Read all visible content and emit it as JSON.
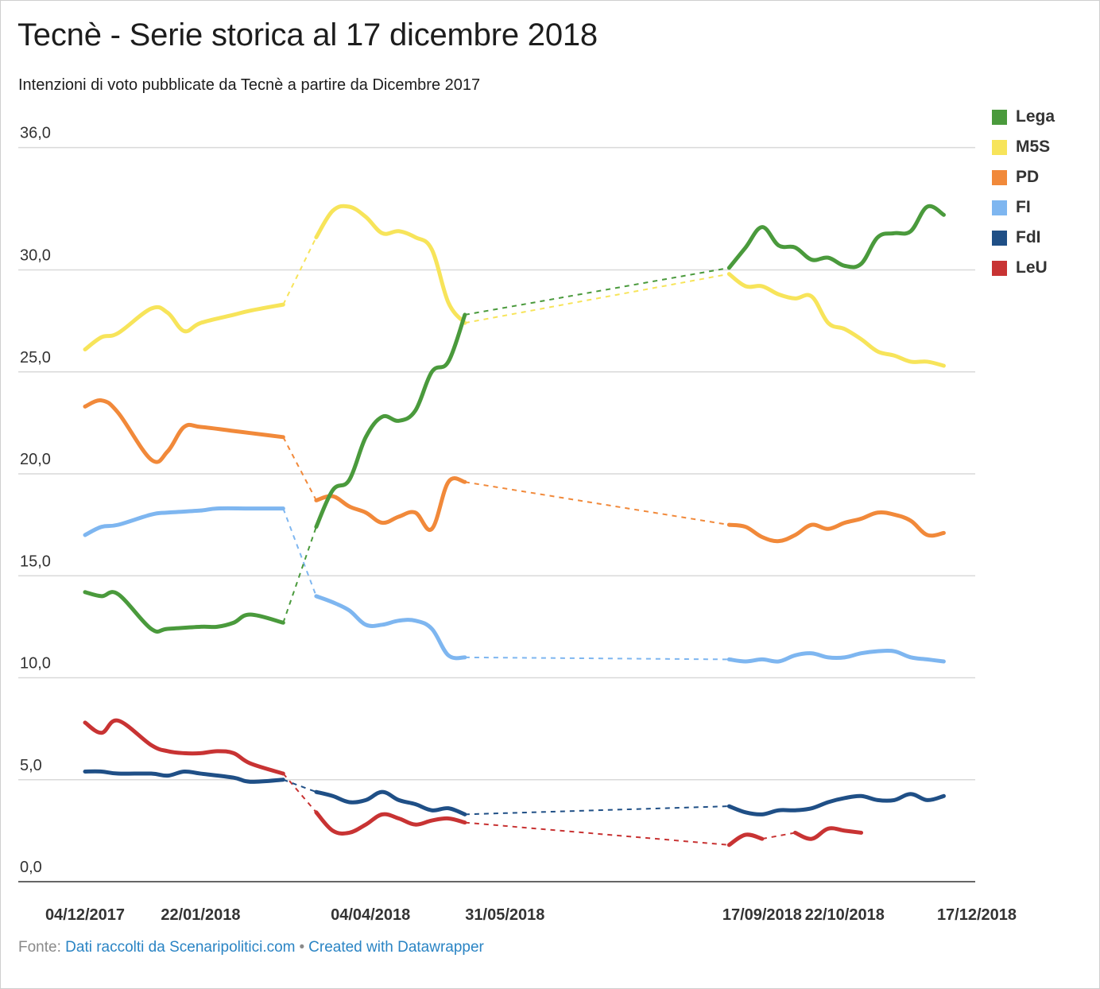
{
  "title": "Tecnè - Serie storica al 17 dicembre 2018",
  "subtitle": "Intenzioni di voto pubblicate da Tecnè a partire da Dicembre 2017",
  "footer": {
    "prefix": "Fonte: ",
    "source_link": "Dati raccolti da Scenaripolitici.com",
    "separator": "•",
    "credit_link": "Created with Datawrapper"
  },
  "chart_data": {
    "type": "line",
    "title": "Tecnè - Serie storica al 17 dicembre 2018",
    "subtitle": "Intenzioni di voto pubblicate da Tecnè a partire da Dicembre 2017",
    "xlabel": "",
    "ylabel": "",
    "ylim": [
      0,
      36
    ],
    "yticks": [
      0,
      5,
      10,
      15,
      20,
      25,
      30,
      36
    ],
    "ytick_labels": [
      "0,0",
      "5,0",
      "10,0",
      "15,0",
      "20,0",
      "25,0",
      "30,0",
      "36,0"
    ],
    "xlim": [
      "2017-12-04",
      "2018-12-17"
    ],
    "xticks": [
      "2017-12-04",
      "2018-01-22",
      "2018-04-04",
      "2018-05-31",
      "2018-09-17",
      "2018-10-22",
      "2018-12-17"
    ],
    "xtick_labels": [
      "04/12/2017",
      "22/01/2018",
      "04/04/2018",
      "31/05/2018",
      "17/09/2018",
      "22/10/2018",
      "17/12/2018"
    ],
    "grid": "horizontal",
    "legend_position": "right",
    "gap_style": "dashed",
    "series": [
      {
        "name": "Lega",
        "color": "#4a9a3c",
        "segments": [
          [
            [
              "2017-12-04",
              14.2
            ],
            [
              "2017-12-11",
              14.0
            ],
            [
              "2017-12-18",
              14.1
            ],
            [
              "2018-01-01",
              12.4
            ],
            [
              "2018-01-08",
              12.4
            ],
            [
              "2018-01-22",
              12.5
            ],
            [
              "2018-01-29",
              12.5
            ],
            [
              "2018-02-05",
              12.7
            ],
            [
              "2018-02-12",
              13.1
            ],
            [
              "2018-02-26",
              12.7
            ]
          ],
          [
            [
              "2018-03-12",
              17.4
            ],
            [
              "2018-03-19",
              19.2
            ],
            [
              "2018-03-26",
              19.7
            ],
            [
              "2018-04-02",
              21.8
            ],
            [
              "2018-04-09",
              22.8
            ],
            [
              "2018-04-16",
              22.6
            ],
            [
              "2018-04-23",
              23.1
            ],
            [
              "2018-04-30",
              25.0
            ],
            [
              "2018-05-07",
              25.5
            ],
            [
              "2018-05-14",
              27.8
            ]
          ],
          [
            [
              "2018-09-03",
              30.1
            ],
            [
              "2018-09-10",
              31.1
            ],
            [
              "2018-09-17",
              32.1
            ],
            [
              "2018-09-24",
              31.2
            ],
            [
              "2018-10-01",
              31.1
            ],
            [
              "2018-10-08",
              30.5
            ],
            [
              "2018-10-15",
              30.6
            ],
            [
              "2018-10-22",
              30.2
            ],
            [
              "2018-10-29",
              30.3
            ],
            [
              "2018-11-05",
              31.6
            ],
            [
              "2018-11-12",
              31.8
            ],
            [
              "2018-11-19",
              31.9
            ],
            [
              "2018-11-26",
              33.1
            ],
            [
              "2018-12-03",
              32.7
            ]
          ]
        ],
        "gaps": [
          [
            "2018-02-26",
            "2018-03-12"
          ],
          [
            "2018-05-14",
            "2018-09-03"
          ]
        ]
      },
      {
        "name": "M5S",
        "color": "#f7e45a",
        "segments": [
          [
            [
              "2017-12-04",
              26.1
            ],
            [
              "2017-12-11",
              26.7
            ],
            [
              "2017-12-18",
              26.9
            ],
            [
              "2018-01-01",
              28.1
            ],
            [
              "2018-01-08",
              27.9
            ],
            [
              "2018-01-15",
              27.0
            ],
            [
              "2018-01-22",
              27.4
            ],
            [
              "2018-02-05",
              27.8
            ],
            [
              "2018-02-12",
              28.0
            ],
            [
              "2018-02-26",
              28.3
            ]
          ],
          [
            [
              "2018-03-12",
              31.6
            ],
            [
              "2018-03-19",
              32.9
            ],
            [
              "2018-03-26",
              33.1
            ],
            [
              "2018-04-02",
              32.6
            ],
            [
              "2018-04-09",
              31.8
            ],
            [
              "2018-04-16",
              31.9
            ],
            [
              "2018-04-23",
              31.6
            ],
            [
              "2018-04-30",
              31.0
            ],
            [
              "2018-05-07",
              28.4
            ],
            [
              "2018-05-14",
              27.4
            ]
          ],
          [
            [
              "2018-09-03",
              29.8
            ],
            [
              "2018-09-10",
              29.2
            ],
            [
              "2018-09-17",
              29.2
            ],
            [
              "2018-09-24",
              28.8
            ],
            [
              "2018-10-01",
              28.6
            ],
            [
              "2018-10-08",
              28.7
            ],
            [
              "2018-10-15",
              27.4
            ],
            [
              "2018-10-22",
              27.1
            ],
            [
              "2018-10-29",
              26.6
            ],
            [
              "2018-11-05",
              26.0
            ],
            [
              "2018-11-12",
              25.8
            ],
            [
              "2018-11-19",
              25.5
            ],
            [
              "2018-11-26",
              25.5
            ],
            [
              "2018-12-03",
              25.3
            ]
          ]
        ],
        "gaps": [
          [
            "2018-02-26",
            "2018-03-12"
          ],
          [
            "2018-05-14",
            "2018-09-03"
          ]
        ]
      },
      {
        "name": "PD",
        "color": "#f1893a",
        "segments": [
          [
            [
              "2017-12-04",
              23.3
            ],
            [
              "2017-12-11",
              23.6
            ],
            [
              "2017-12-18",
              23.0
            ],
            [
              "2018-01-01",
              20.7
            ],
            [
              "2018-01-08",
              21.1
            ],
            [
              "2018-01-15",
              22.3
            ],
            [
              "2018-01-22",
              22.3
            ],
            [
              "2018-02-05",
              22.1
            ],
            [
              "2018-02-12",
              22.0
            ],
            [
              "2018-02-26",
              21.8
            ]
          ],
          [
            [
              "2018-03-12",
              18.7
            ],
            [
              "2018-03-19",
              18.9
            ],
            [
              "2018-03-26",
              18.4
            ],
            [
              "2018-04-02",
              18.1
            ],
            [
              "2018-04-09",
              17.6
            ],
            [
              "2018-04-16",
              17.9
            ],
            [
              "2018-04-23",
              18.1
            ],
            [
              "2018-04-30",
              17.3
            ],
            [
              "2018-05-07",
              19.6
            ],
            [
              "2018-05-14",
              19.6
            ]
          ],
          [
            [
              "2018-09-03",
              17.5
            ],
            [
              "2018-09-10",
              17.4
            ],
            [
              "2018-09-17",
              16.9
            ],
            [
              "2018-09-24",
              16.7
            ],
            [
              "2018-10-01",
              17.0
            ],
            [
              "2018-10-08",
              17.5
            ],
            [
              "2018-10-15",
              17.3
            ],
            [
              "2018-10-22",
              17.6
            ],
            [
              "2018-10-29",
              17.8
            ],
            [
              "2018-11-05",
              18.1
            ],
            [
              "2018-11-12",
              18.0
            ],
            [
              "2018-11-19",
              17.7
            ],
            [
              "2018-11-26",
              17.0
            ],
            [
              "2018-12-03",
              17.1
            ]
          ]
        ],
        "gaps": [
          [
            "2018-02-26",
            "2018-03-12"
          ],
          [
            "2018-05-14",
            "2018-09-03"
          ]
        ]
      },
      {
        "name": "FI",
        "color": "#7eb6f0",
        "segments": [
          [
            [
              "2017-12-04",
              17.0
            ],
            [
              "2017-12-11",
              17.4
            ],
            [
              "2017-12-18",
              17.5
            ],
            [
              "2018-01-01",
              18.0
            ],
            [
              "2018-01-08",
              18.1
            ],
            [
              "2018-01-22",
              18.2
            ],
            [
              "2018-01-29",
              18.3
            ],
            [
              "2018-02-12",
              18.3
            ],
            [
              "2018-02-26",
              18.3
            ]
          ],
          [
            [
              "2018-03-12",
              14.0
            ],
            [
              "2018-03-19",
              13.7
            ],
            [
              "2018-03-26",
              13.3
            ],
            [
              "2018-04-02",
              12.6
            ],
            [
              "2018-04-09",
              12.6
            ],
            [
              "2018-04-16",
              12.8
            ],
            [
              "2018-04-23",
              12.8
            ],
            [
              "2018-04-30",
              12.4
            ],
            [
              "2018-05-07",
              11.1
            ],
            [
              "2018-05-14",
              11.0
            ]
          ],
          [
            [
              "2018-09-03",
              10.9
            ],
            [
              "2018-09-10",
              10.8
            ],
            [
              "2018-09-17",
              10.9
            ],
            [
              "2018-09-24",
              10.8
            ],
            [
              "2018-10-01",
              11.1
            ],
            [
              "2018-10-08",
              11.2
            ],
            [
              "2018-10-15",
              11.0
            ],
            [
              "2018-10-22",
              11.0
            ],
            [
              "2018-10-29",
              11.2
            ],
            [
              "2018-11-05",
              11.3
            ],
            [
              "2018-11-12",
              11.3
            ],
            [
              "2018-11-19",
              11.0
            ],
            [
              "2018-11-26",
              10.9
            ],
            [
              "2018-12-03",
              10.8
            ]
          ]
        ],
        "gaps": [
          [
            "2018-05-14",
            "2018-09-03"
          ]
        ],
        "gap_note": "drop from 18.3 to 14.0 between 2018-02-26 and 2018-03-12 drawn dashed"
      },
      {
        "name": "FdI",
        "color": "#1f4f86",
        "segments": [
          [
            [
              "2017-12-04",
              5.4
            ],
            [
              "2017-12-11",
              5.4
            ],
            [
              "2017-12-18",
              5.3
            ],
            [
              "2018-01-01",
              5.3
            ],
            [
              "2018-01-08",
              5.2
            ],
            [
              "2018-01-15",
              5.4
            ],
            [
              "2018-01-22",
              5.3
            ],
            [
              "2018-02-05",
              5.1
            ],
            [
              "2018-02-12",
              4.9
            ],
            [
              "2018-02-26",
              5.0
            ]
          ],
          [
            [
              "2018-03-12",
              4.4
            ],
            [
              "2018-03-19",
              4.2
            ],
            [
              "2018-03-26",
              3.9
            ],
            [
              "2018-04-02",
              4.0
            ],
            [
              "2018-04-09",
              4.4
            ],
            [
              "2018-04-16",
              4.0
            ],
            [
              "2018-04-23",
              3.8
            ],
            [
              "2018-04-30",
              3.5
            ],
            [
              "2018-05-07",
              3.6
            ],
            [
              "2018-05-14",
              3.3
            ]
          ],
          [
            [
              "2018-09-03",
              3.7
            ],
            [
              "2018-09-10",
              3.4
            ],
            [
              "2018-09-17",
              3.3
            ],
            [
              "2018-09-24",
              3.5
            ],
            [
              "2018-10-01",
              3.5
            ],
            [
              "2018-10-08",
              3.6
            ],
            [
              "2018-10-15",
              3.9
            ],
            [
              "2018-10-22",
              4.1
            ],
            [
              "2018-10-29",
              4.2
            ],
            [
              "2018-11-05",
              4.0
            ],
            [
              "2018-11-12",
              4.0
            ],
            [
              "2018-11-19",
              4.3
            ],
            [
              "2018-11-26",
              4.0
            ],
            [
              "2018-12-03",
              4.2
            ]
          ]
        ],
        "gaps": [
          [
            "2018-02-26",
            "2018-03-12"
          ],
          [
            "2018-05-14",
            "2018-09-03"
          ]
        ]
      },
      {
        "name": "LeU",
        "color": "#c83333",
        "segments": [
          [
            [
              "2017-12-04",
              7.8
            ],
            [
              "2017-12-11",
              7.3
            ],
            [
              "2017-12-18",
              7.9
            ],
            [
              "2018-01-01",
              6.7
            ],
            [
              "2018-01-08",
              6.4
            ],
            [
              "2018-01-15",
              6.3
            ],
            [
              "2018-01-22",
              6.3
            ],
            [
              "2018-01-29",
              6.4
            ],
            [
              "2018-02-05",
              6.3
            ],
            [
              "2018-02-12",
              5.8
            ],
            [
              "2018-02-26",
              5.3
            ]
          ],
          [
            [
              "2018-03-12",
              3.4
            ],
            [
              "2018-03-19",
              2.5
            ],
            [
              "2018-03-26",
              2.4
            ],
            [
              "2018-04-02",
              2.8
            ],
            [
              "2018-04-09",
              3.3
            ],
            [
              "2018-04-16",
              3.1
            ],
            [
              "2018-04-23",
              2.8
            ],
            [
              "2018-04-30",
              3.0
            ],
            [
              "2018-05-07",
              3.1
            ],
            [
              "2018-05-14",
              2.9
            ]
          ],
          [
            [
              "2018-09-03",
              1.8
            ],
            [
              "2018-09-10",
              2.3
            ],
            [
              "2018-09-17",
              2.1
            ]
          ],
          [
            [
              "2018-10-01",
              2.4
            ],
            [
              "2018-10-08",
              2.1
            ],
            [
              "2018-10-15",
              2.6
            ],
            [
              "2018-10-22",
              2.5
            ],
            [
              "2018-10-29",
              2.4
            ]
          ]
        ],
        "gaps": [
          [
            "2018-02-26",
            "2018-03-12"
          ],
          [
            "2018-05-14",
            "2018-09-03"
          ],
          [
            "2018-09-17",
            "2018-10-01"
          ]
        ]
      }
    ]
  }
}
